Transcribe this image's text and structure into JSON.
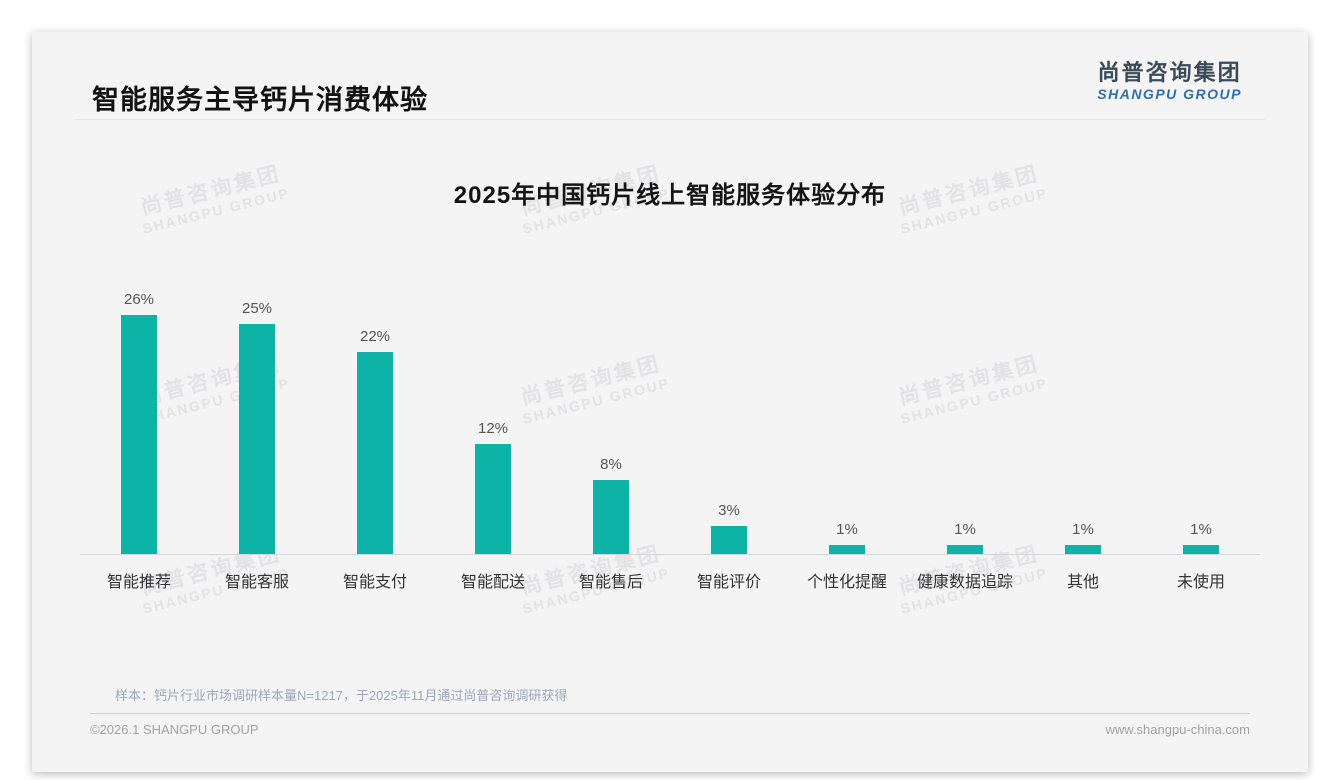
{
  "page": {
    "title": "智能服务主导钙片消费体验",
    "logo": {
      "cn": "尚普咨询集团",
      "en": "SHANGPU GROUP"
    },
    "watermark": {
      "cn": "尚普咨询集团",
      "en": "SHANGPU GROUP"
    },
    "footnote": "样本：钙片行业市场调研样本量N=1217，于2025年11月通过尚普咨询调研获得",
    "footer_left": "©2026.1 SHANGPU GROUP",
    "footer_right": "www.shangpu-china.com"
  },
  "chart_data": {
    "type": "bar",
    "title": "2025年中国钙片线上智能服务体验分布",
    "categories": [
      "智能推荐",
      "智能客服",
      "智能支付",
      "智能配送",
      "智能售后",
      "智能评价",
      "个性化提醒",
      "健康数据追踪",
      "其他",
      "未使用"
    ],
    "values": [
      26,
      25,
      22,
      12,
      8,
      3,
      1,
      1,
      1,
      1
    ],
    "unit": "%",
    "bar_color": "#0db3a6",
    "value_label_color": "#555555",
    "axis_line_color": "#d7d7d8",
    "ylim": [
      0,
      30
    ],
    "grid": false,
    "legend": null,
    "xlabel": "",
    "ylabel": ""
  }
}
